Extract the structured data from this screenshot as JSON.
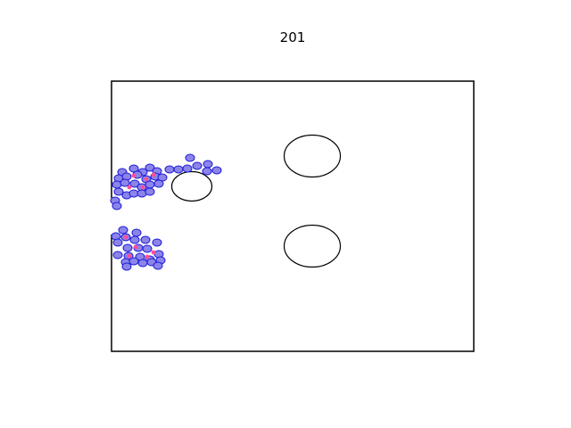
{
  "frame_label": "201",
  "colors": {
    "wall": "#000000",
    "obstacle_stroke": "#000000",
    "particle_fill": "#8c84e8",
    "particle_stroke": "#1b1bd9",
    "particle_core": "#ff4f9a"
  }
}
